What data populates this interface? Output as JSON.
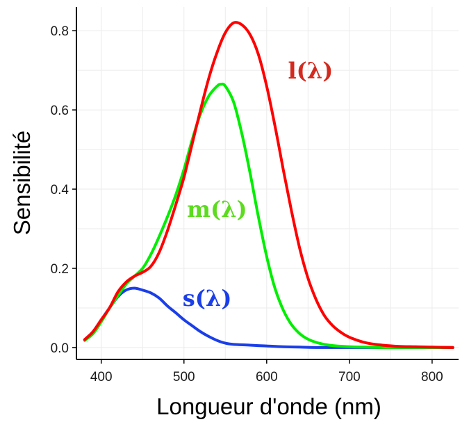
{
  "chart_data": {
    "type": "line",
    "xlabel": "Longueur d'onde (nm)",
    "ylabel": "Sensibilité",
    "xlim": [
      370,
      832
    ],
    "ylim": [
      -0.03,
      0.86
    ],
    "xticks": [
      400,
      500,
      600,
      700,
      800
    ],
    "xtick_labels": [
      "400",
      "500",
      "600",
      "700",
      "800"
    ],
    "yticks": [
      0.0,
      0.2,
      0.4,
      0.6,
      0.8
    ],
    "ytick_labels": [
      "0.0",
      "0.2",
      "0.4",
      "0.6",
      "0.8"
    ],
    "grid": true,
    "legend": "none",
    "series": [
      {
        "name": "l(λ)",
        "color": "#ff0000",
        "x": [
          380,
          390,
          400,
          410,
          420,
          430,
          440,
          450,
          460,
          470,
          480,
          490,
          500,
          510,
          520,
          530,
          540,
          550,
          560,
          570,
          580,
          590,
          600,
          610,
          620,
          630,
          640,
          650,
          660,
          670,
          680,
          690,
          700,
          720,
          740,
          760,
          780,
          800,
          825
        ],
        "y": [
          0.02,
          0.04,
          0.07,
          0.1,
          0.14,
          0.165,
          0.18,
          0.19,
          0.205,
          0.24,
          0.295,
          0.36,
          0.43,
          0.515,
          0.6,
          0.68,
          0.745,
          0.795,
          0.82,
          0.815,
          0.79,
          0.74,
          0.66,
          0.56,
          0.45,
          0.345,
          0.25,
          0.175,
          0.12,
          0.08,
          0.055,
          0.038,
          0.026,
          0.012,
          0.006,
          0.003,
          0.002,
          0.001,
          0.0
        ]
      },
      {
        "name": "m(λ)",
        "color": "#00ee00",
        "x": [
          380,
          390,
          400,
          410,
          420,
          430,
          440,
          450,
          460,
          470,
          480,
          490,
          500,
          510,
          520,
          530,
          540,
          545,
          550,
          560,
          570,
          580,
          590,
          600,
          610,
          620,
          630,
          640,
          650,
          660,
          670,
          680,
          700,
          720,
          740,
          760,
          780,
          800,
          825
        ],
        "y": [
          0.018,
          0.035,
          0.065,
          0.1,
          0.13,
          0.16,
          0.18,
          0.2,
          0.235,
          0.28,
          0.33,
          0.385,
          0.45,
          0.525,
          0.59,
          0.635,
          0.66,
          0.665,
          0.66,
          0.62,
          0.54,
          0.44,
          0.33,
          0.23,
          0.15,
          0.095,
          0.058,
          0.035,
          0.021,
          0.013,
          0.008,
          0.005,
          0.002,
          0.001,
          0.0,
          0.0,
          0.0,
          0.0,
          0.0
        ]
      },
      {
        "name": "s(λ)",
        "color": "#1a3ee8",
        "x": [
          380,
          390,
          400,
          410,
          420,
          430,
          440,
          450,
          460,
          470,
          480,
          490,
          500,
          510,
          520,
          530,
          540,
          550,
          560,
          580,
          600,
          620,
          640,
          660,
          700,
          750,
          800,
          825
        ],
        "y": [
          0.02,
          0.04,
          0.07,
          0.1,
          0.128,
          0.145,
          0.15,
          0.145,
          0.138,
          0.125,
          0.105,
          0.088,
          0.07,
          0.055,
          0.04,
          0.028,
          0.018,
          0.011,
          0.008,
          0.006,
          0.004,
          0.002,
          0.001,
          0.0,
          0.0,
          0.0,
          0.0,
          0.0
        ]
      }
    ],
    "annotations": [
      {
        "text": "l(λ)",
        "x": 653,
        "y": 0.68,
        "color": "#d42a1e"
      },
      {
        "text": "m(λ)",
        "x": 540,
        "y": 0.33,
        "color": "#5cdb1f"
      },
      {
        "text": "s(λ)",
        "x": 528,
        "y": 0.105,
        "color": "#1a3ee8"
      }
    ]
  }
}
